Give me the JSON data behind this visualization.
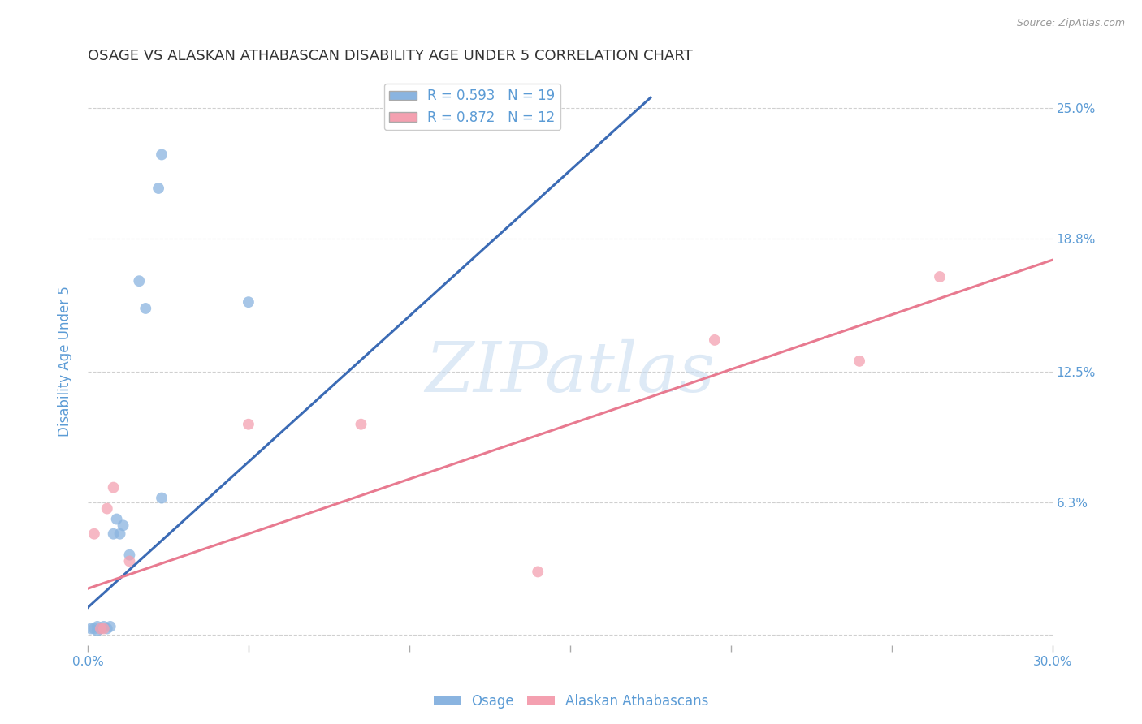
{
  "title": "OSAGE VS ALASKAN ATHABASCAN DISABILITY AGE UNDER 5 CORRELATION CHART",
  "source": "Source: ZipAtlas.com",
  "ylabel": "Disability Age Under 5",
  "xlim": [
    0.0,
    0.3
  ],
  "ylim": [
    -0.005,
    0.265
  ],
  "ytick_positions": [
    0.0,
    0.063,
    0.125,
    0.188,
    0.25
  ],
  "ytick_labels": [
    "",
    "6.3%",
    "12.5%",
    "18.8%",
    "25.0%"
  ],
  "xtick_positions": [
    0.0,
    0.05,
    0.1,
    0.15,
    0.2,
    0.25,
    0.3
  ],
  "xtick_labels": [
    "0.0%",
    "",
    "",
    "",
    "",
    "",
    "30.0%"
  ],
  "legend_entries": [
    {
      "label": "R = 0.593   N = 19",
      "color": "#7da7d9"
    },
    {
      "label": "R = 0.872   N = 12",
      "color": "#f4a0b0"
    }
  ],
  "watermark": "ZIPatlas",
  "osage_color": "#8ab4e0",
  "alaskan_color": "#f4a0b0",
  "osage_line_color": "#3b6bb5",
  "alaskan_line_color": "#e87a90",
  "background_color": "#ffffff",
  "grid_color": "#d0d0d0",
  "title_color": "#333333",
  "axis_color": "#5b9bd5",
  "tick_label_color": "#5b9bd5",
  "osage_x": [
    0.001,
    0.002,
    0.003,
    0.003,
    0.004,
    0.005,
    0.006,
    0.007,
    0.008,
    0.009,
    0.01,
    0.011,
    0.013,
    0.016,
    0.018,
    0.022,
    0.023,
    0.023,
    0.05
  ],
  "osage_y": [
    0.003,
    0.003,
    0.002,
    0.004,
    0.003,
    0.004,
    0.003,
    0.004,
    0.048,
    0.055,
    0.048,
    0.052,
    0.038,
    0.168,
    0.155,
    0.212,
    0.228,
    0.065,
    0.158
  ],
  "alaskan_x": [
    0.002,
    0.004,
    0.005,
    0.006,
    0.008,
    0.013,
    0.05,
    0.085,
    0.14,
    0.195,
    0.24,
    0.265
  ],
  "alaskan_y": [
    0.048,
    0.003,
    0.003,
    0.06,
    0.07,
    0.035,
    0.1,
    0.1,
    0.03,
    0.14,
    0.13,
    0.17
  ],
  "osage_marker_size": 100,
  "alaskan_marker_size": 100,
  "line_width": 2.2,
  "title_fontsize": 13,
  "axis_label_fontsize": 12,
  "tick_fontsize": 11,
  "legend_fontsize": 12,
  "source_fontsize": 9,
  "osage_line_x": [
    0.0,
    0.175
  ],
  "osage_line_y_start": 0.013,
  "osage_line_y_end": 0.255,
  "alaskan_line_x": [
    0.0,
    0.3
  ],
  "alaskan_line_y_start": 0.022,
  "alaskan_line_y_end": 0.178
}
